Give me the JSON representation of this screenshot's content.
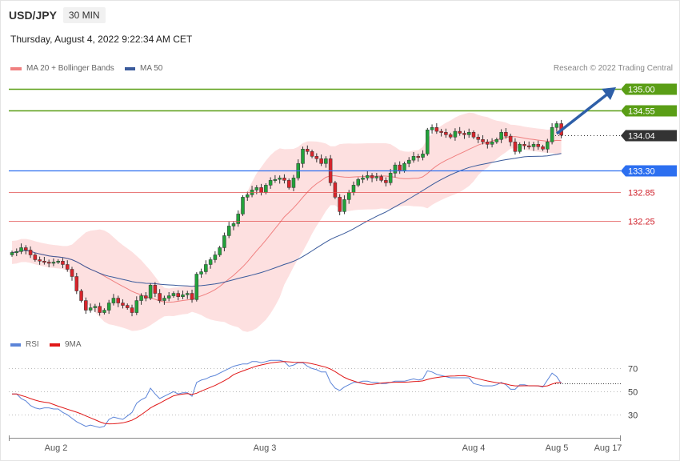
{
  "header": {
    "symbol": "USD/JPY",
    "timeframe": "30 MIN",
    "datetime": "Thursday, August 4, 2022 9:22:34 AM CET",
    "copyright": "Research © 2022 Trading Central"
  },
  "legend": {
    "ma20_label": "MA 20 + Bollinger Bands",
    "ma50_label": "MA 50",
    "rsi_label": "RSI",
    "rsi_ma_label": "9MA"
  },
  "colors": {
    "bull": "#22a23a",
    "bear": "#d8242b",
    "resistance": "#5a9e16",
    "support": "#e25050",
    "pivot": "#2c6ff0",
    "bollinger_fill": "#fde0e0",
    "ma20": "#f08080",
    "ma50": "#3a5a9b",
    "rsi": "#5b84d8",
    "rsi_ma": "#e01818",
    "arrow": "#2e5fa8",
    "last_price_bg": "#333333"
  },
  "chart_data": [
    {
      "type": "candlestick",
      "x_ticks": [
        "Aug 2",
        "Aug 3",
        "Aug 4",
        "Aug 5",
        "Aug 17"
      ],
      "price_levels": [
        {
          "value": 135.0,
          "label": "135.00",
          "kind": "resistance"
        },
        {
          "value": 134.55,
          "label": "134.55",
          "kind": "resistance"
        },
        {
          "value": 134.04,
          "label": "134.04",
          "kind": "last"
        },
        {
          "value": 133.3,
          "label": "133.30",
          "kind": "pivot"
        },
        {
          "value": 132.85,
          "label": "132.85",
          "kind": "support"
        },
        {
          "value": 132.25,
          "label": "132.25",
          "kind": "support"
        }
      ],
      "ylim": [
        129.86,
        135.22
      ],
      "closes": [
        131.6,
        131.62,
        131.7,
        131.65,
        131.55,
        131.45,
        131.42,
        131.4,
        131.38,
        131.4,
        131.42,
        131.35,
        131.25,
        131.1,
        130.8,
        130.6,
        130.4,
        130.45,
        130.48,
        130.35,
        130.4,
        130.55,
        130.65,
        130.55,
        130.5,
        130.45,
        130.35,
        130.6,
        130.7,
        130.65,
        130.92,
        130.75,
        130.6,
        130.65,
        130.7,
        130.75,
        130.68,
        130.72,
        130.75,
        130.62,
        131.15,
        131.2,
        131.35,
        131.45,
        131.55,
        131.7,
        131.95,
        132.15,
        132.2,
        132.4,
        132.75,
        132.8,
        132.9,
        132.95,
        132.85,
        133.0,
        133.1,
        133.12,
        133.15,
        133.1,
        132.95,
        133.15,
        133.45,
        133.75,
        133.7,
        133.6,
        133.55,
        133.45,
        133.55,
        133.05,
        132.75,
        132.45,
        132.7,
        132.85,
        133.0,
        133.12,
        133.15,
        133.2,
        133.15,
        133.18,
        133.1,
        133.05,
        133.25,
        133.42,
        133.3,
        133.45,
        133.52,
        133.6,
        133.58,
        133.65,
        134.15,
        134.2,
        134.12,
        134.1,
        134.05,
        134.0,
        134.12,
        134.08,
        134.05,
        134.1,
        134.0,
        133.95,
        133.9,
        133.85,
        133.9,
        133.95,
        134.1,
        134.02,
        133.9,
        133.7,
        133.85,
        133.82,
        133.8,
        133.85,
        133.8,
        133.75,
        133.9,
        134.2,
        134.28,
        134.04
      ],
      "rsi": [
        48,
        48,
        44,
        42,
        38,
        36,
        35,
        36,
        36,
        35,
        35,
        32,
        30,
        27,
        24,
        22,
        20,
        21,
        20,
        19,
        20,
        26,
        28,
        27,
        26,
        29,
        32,
        40,
        43,
        45,
        53,
        48,
        44,
        46,
        48,
        50,
        48,
        49,
        49,
        46,
        58,
        60,
        61,
        63,
        64,
        66,
        68,
        70,
        72,
        73,
        74,
        74,
        76,
        76,
        75,
        76,
        77,
        77,
        77,
        76,
        72,
        73,
        75,
        75,
        72,
        70,
        69,
        67,
        67,
        58,
        53,
        51,
        54,
        56,
        58,
        58,
        59,
        59,
        58,
        58,
        57,
        57,
        58,
        59,
        59,
        59,
        60,
        61,
        60,
        61,
        68,
        67,
        65,
        64,
        63,
        62,
        62,
        62,
        62,
        62,
        57,
        56,
        55,
        55,
        55,
        56,
        58,
        56,
        52,
        52,
        56,
        56,
        55,
        55,
        55,
        54,
        60,
        66,
        63,
        57
      ],
      "rsi_levels": [
        70,
        50,
        30
      ],
      "rsi_ylim": [
        17,
        80
      ]
    }
  ]
}
